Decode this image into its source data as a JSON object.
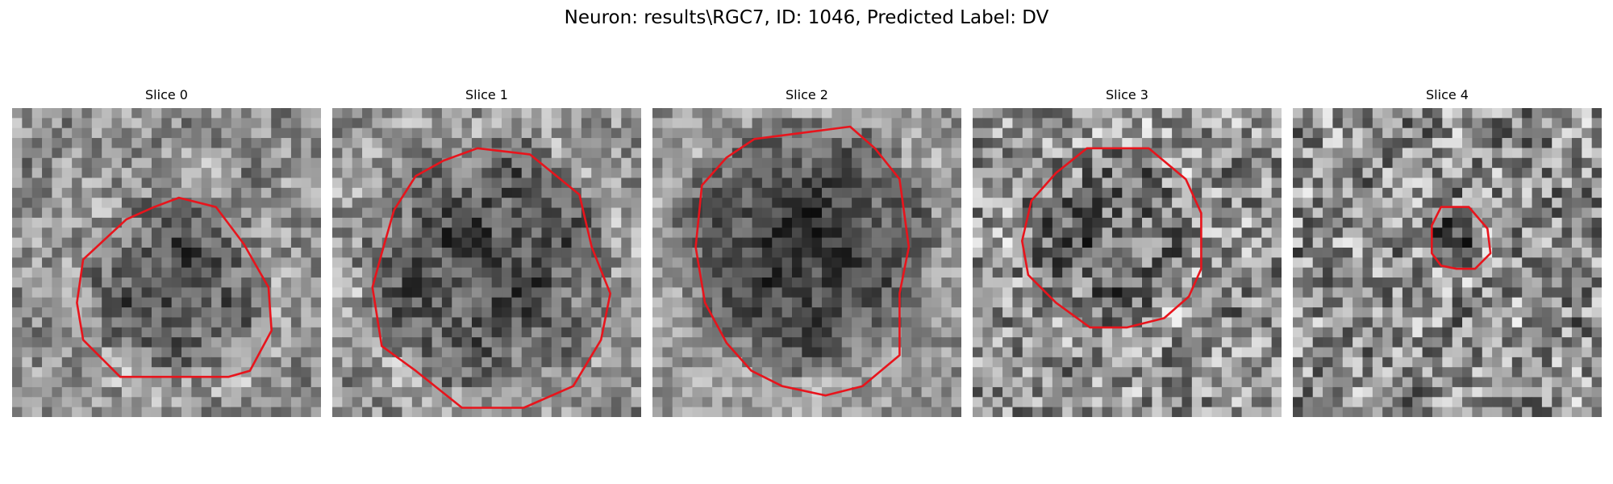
{
  "figure": {
    "title": "Neuron: results\\RGC7, ID: 1046, Predicted Label: DV"
  },
  "slices": [
    {
      "title": "Slice 0",
      "index": 0
    },
    {
      "title": "Slice 1",
      "index": 1
    },
    {
      "title": "Slice 2",
      "index": 2
    },
    {
      "title": "Slice 3",
      "index": 3
    },
    {
      "title": "Slice 4",
      "index": 4
    }
  ],
  "colors": {
    "outline": "#e8141c",
    "background": "#ffffff",
    "text": "#000000"
  },
  "image_style": "grayscale pixelated microscopy patch with red cell outline"
}
